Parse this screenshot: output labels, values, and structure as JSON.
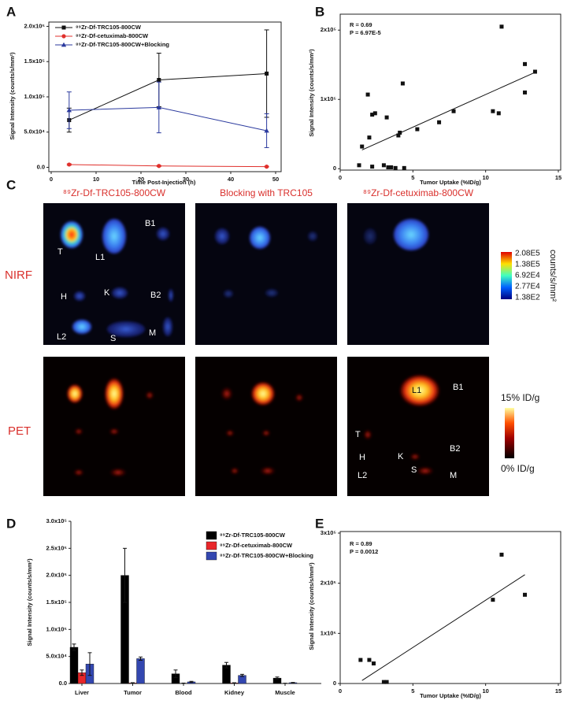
{
  "chart_data": [
    {
      "type": "line",
      "panel_label": "A",
      "ylabel": "Signal Intensity (counts/s/mm²)",
      "xlabel": "Time Post-Injection (h)",
      "x": [
        4,
        24,
        48
      ],
      "xlim": [
        0,
        50
      ],
      "xticks": [
        0,
        10,
        20,
        30,
        40,
        50
      ],
      "ylim": [
        -5000,
        205000
      ],
      "yticks": [
        {
          "value": 0,
          "label": "0.0"
        },
        {
          "value": 50000,
          "label": "5.0x10⁴"
        },
        {
          "value": 100000,
          "label": "1.0x10⁵"
        },
        {
          "value": 150000,
          "label": "1.5x10⁵"
        },
        {
          "value": 200000,
          "label": "2.0x10⁵"
        }
      ],
      "series": [
        {
          "name": "⁸⁹Zr-Df-TRC105-800CW",
          "color": "#111111",
          "marker": "square",
          "values": [
            67000,
            124000,
            133000
          ],
          "errors": [
            17000,
            38000,
            62000
          ]
        },
        {
          "name": "⁸⁹Zr-Df-cetuximab-800CW",
          "color": "#e0302c",
          "marker": "circle",
          "values": [
            4000,
            2000,
            1000
          ],
          "errors": [
            1000,
            800,
            500
          ]
        },
        {
          "name": "⁸⁹Zr-Df-TRC105-800CW+Blocking",
          "color": "#2b3a9e",
          "marker": "triangle",
          "values": [
            81000,
            85000,
            52000
          ],
          "errors": [
            26000,
            36000,
            24000
          ]
        }
      ]
    },
    {
      "type": "scatter",
      "panel_label": "B",
      "ylabel": "Signal Intensity (counts/s/mm²)",
      "xlabel": "Tumor Uptake (%ID/g)",
      "annotations": [
        "R = 0.69",
        "P = 6.97E-5"
      ],
      "xlim": [
        0,
        15
      ],
      "xticks": [
        0,
        5,
        10,
        15
      ],
      "ylim": [
        -2000,
        223000
      ],
      "yticks": [
        0,
        {
          "value": 100000,
          "label": "1x10⁵"
        },
        {
          "value": 200000,
          "label": "2x10⁵"
        }
      ],
      "color": "#111111",
      "x": [
        1.3,
        1.5,
        2.0,
        1.9,
        2.2,
        2.2,
        2.4,
        3.0,
        3.2,
        3.3,
        3.5,
        3.8,
        4.0,
        4.1,
        4.3,
        4.4,
        5.3,
        6.8,
        7.8,
        10.5,
        10.9,
        11.1,
        12.7,
        12.7,
        13.4
      ],
      "values": [
        5000,
        32000,
        45000,
        107000,
        3000,
        78000,
        80000,
        5000,
        74000,
        2000,
        2000,
        1000,
        48000,
        52000,
        123000,
        1000,
        57000,
        67000,
        83000,
        83000,
        80000,
        205000,
        151000,
        110000,
        140000
      ],
      "fit": {
        "x": [
          1.5,
          13.5
        ],
        "values": [
          27000,
          140000
        ]
      }
    },
    {
      "type": "bar",
      "panel_label": "D",
      "ylabel": "Signal Intensity (counts/s/mm²)",
      "categories": [
        "Liver",
        "Tumor",
        "Blood",
        "Kidney",
        "Muscle"
      ],
      "ylim": [
        0,
        300000
      ],
      "yticks": [
        {
          "value": 0,
          "label": "0.0"
        },
        {
          "value": 50000,
          "label": "5.0x10⁴"
        },
        {
          "value": 100000,
          "label": "1.0x10⁵"
        },
        {
          "value": 150000,
          "label": "1.5x10⁵"
        },
        {
          "value": 200000,
          "label": "2.0x10⁵"
        },
        {
          "value": 250000,
          "label": "2.5x10⁵"
        },
        {
          "value": 300000,
          "label": "3.0x10⁵"
        }
      ],
      "series": [
        {
          "name": "⁸⁹Zr-Df-TRC105-800CW",
          "color": "#000000",
          "values": [
            67000,
            200000,
            18000,
            34000,
            10000
          ],
          "errors": [
            6000,
            50000,
            7000,
            5000,
            2000
          ]
        },
        {
          "name": "⁸⁹Zr-Df-cetuximab-800CW",
          "color": "#e8262a",
          "values": [
            20000,
            1000,
            500,
            1000,
            300
          ],
          "errors": [
            5000,
            500,
            300,
            400,
            200
          ]
        },
        {
          "name": "⁸⁹Zr-Df-TRC105-800CW+Blocking",
          "color": "#3347b0",
          "values": [
            36000,
            46000,
            3000,
            15000,
            1500
          ],
          "errors": [
            21000,
            3000,
            1000,
            2000,
            500
          ]
        }
      ]
    },
    {
      "type": "scatter",
      "panel_label": "E",
      "ylabel": "Signal Intensity (counts/s/mm²)",
      "xlabel": "Tumor Uptake (%ID/g)",
      "annotations": [
        "R = 0.89",
        "P = 0.0012"
      ],
      "xlim": [
        0,
        15
      ],
      "xticks": [
        0,
        5,
        10,
        15
      ],
      "ylim": [
        0,
        300000
      ],
      "yticks": [
        0,
        {
          "value": 100000,
          "label": "1x10⁵"
        },
        {
          "value": 200000,
          "label": "2x10⁵"
        },
        {
          "value": 300000,
          "label": "3x10⁵"
        }
      ],
      "color": "#111111",
      "x": [
        1.4,
        2.0,
        2.3,
        3.0,
        3.2,
        10.5,
        11.1,
        12.7
      ],
      "values": [
        47000,
        47000,
        40000,
        3000,
        3000,
        167000,
        257000,
        177000
      ],
      "fit": {
        "x": [
          1.5,
          12.7
        ],
        "values": [
          6000,
          217000
        ]
      }
    }
  ],
  "image_panel": {
    "panel_label": "C",
    "column_titles": [
      "⁸⁹Zr-Df-TRC105-800CW",
      "Blocking with TRC105",
      "⁸⁹Zr-Df-cetuximab-800CW"
    ],
    "row_labels": [
      "NIRF",
      "PET"
    ],
    "nirf_organs": [
      "T",
      "L1",
      "B1",
      "H",
      "K",
      "B2",
      "L2",
      "S",
      "M"
    ],
    "pet_organs": [
      "T",
      "L1",
      "B1",
      "H",
      "K",
      "B2",
      "L2",
      "S",
      "M"
    ],
    "nirf_scale": [
      "2.08E5",
      "1.38E5",
      "6.92E4",
      "2.77E4",
      "1.38E2"
    ],
    "nirf_unit": "counts/s/mm²",
    "pet_scale": [
      "15% ID/g",
      "0% ID/g"
    ]
  }
}
